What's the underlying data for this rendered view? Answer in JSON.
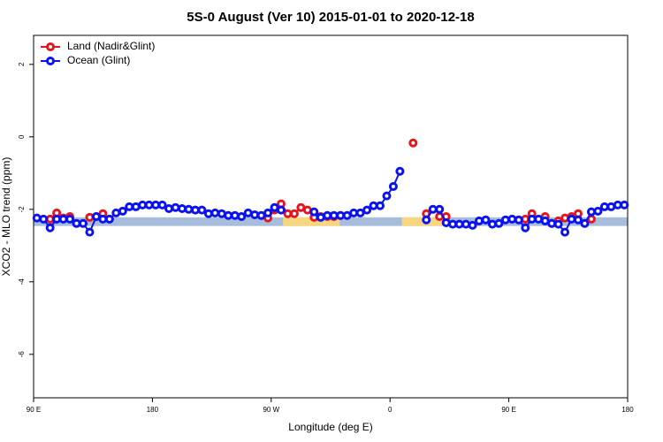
{
  "chart_data": {
    "type": "line",
    "title": "5S-0 August (Ver 10)   2015-01-01 to 2020-12-18",
    "xlabel": "Longitude (deg E)",
    "ylabel": "XCO2 - MLO trend (ppm)",
    "xlim": [
      90,
      540
    ],
    "xticks": [
      {
        "value": 90,
        "label": "90 E"
      },
      180,
      {
        "value": 270,
        "label": "90 W"
      },
      {
        "value": 360,
        "label": "0"
      },
      {
        "value": 450,
        "label": "90 E"
      },
      {
        "value": 540,
        "label": "180"
      }
    ],
    "ylim": [
      -7.2,
      2.8
    ],
    "yticks": [
      2,
      0,
      -2,
      -4,
      -6
    ],
    "legend": "top-left",
    "bands": [
      {
        "color": "#a7bddb",
        "x": [
          90,
          540
        ],
        "y": [
          -2.22,
          -2.46
        ]
      },
      {
        "color": "#f6d77f",
        "x": [
          279,
          322
        ],
        "y": [
          -2.22,
          -2.46
        ]
      },
      {
        "color": "#f6d77f",
        "x": [
          369,
          403
        ],
        "y": [
          -2.22,
          -2.46
        ]
      }
    ],
    "x": [
      92.5,
      97.5,
      102.5,
      107.5,
      112.5,
      117.5,
      122.5,
      127.5,
      132.5,
      137.5,
      142.5,
      147.5,
      152.5,
      157.5,
      162.5,
      167.5,
      172.5,
      177.5,
      182.5,
      187.5,
      192.5,
      197.5,
      202.5,
      207.5,
      212.5,
      217.5,
      222.5,
      227.5,
      232.5,
      237.5,
      242.5,
      247.5,
      252.5,
      257.5,
      262.5,
      267.5,
      272.5,
      277.5,
      282.5,
      287.5,
      292.5,
      297.5,
      302.5,
      307.5,
      312.5,
      317.5,
      322.5,
      327.5,
      332.5,
      337.5,
      342.5,
      347.5,
      352.5,
      357.5,
      362.5,
      367.5,
      372.5,
      377.5,
      382.5,
      387.5,
      392.5,
      397.5,
      402.5,
      407.5,
      412.5,
      417.5,
      422.5,
      427.5,
      432.5,
      437.5,
      442.5,
      447.5,
      452.5,
      457.5,
      462.5,
      467.5,
      472.5,
      477.5,
      482.5,
      487.5,
      492.5,
      497.5,
      502.5,
      507.5,
      512.5,
      517.5,
      522.5,
      527.5,
      532.5,
      537.5
    ],
    "series": [
      {
        "name": "Land (Nadir&Glint)",
        "color": "#e8141c",
        "values": [
          null,
          null,
          -2.27,
          -2.1,
          -2.24,
          -2.2,
          null,
          null,
          -2.22,
          -2.2,
          -2.12,
          -2.27,
          null,
          null,
          null,
          null,
          null,
          null,
          null,
          null,
          null,
          null,
          null,
          null,
          null,
          null,
          null,
          null,
          null,
          null,
          null,
          null,
          null,
          null,
          null,
          -2.24,
          -2.02,
          -1.85,
          -2.12,
          -2.12,
          -1.95,
          -2.02,
          -2.22,
          -2.2,
          -2.2,
          -2.2,
          -2.17,
          null,
          null,
          null,
          null,
          null,
          null,
          null,
          null,
          null,
          null,
          -0.17,
          null,
          -2.12,
          null,
          -2.2,
          -2.2,
          null,
          null,
          null,
          null,
          null,
          null,
          null,
          null,
          null,
          null,
          null,
          -2.27,
          -2.12,
          null,
          -2.2,
          null,
          -2.32,
          -2.24,
          -2.2,
          -2.12,
          null,
          -2.27,
          null,
          null,
          null,
          null,
          null
        ]
      },
      {
        "name": "Ocean (Glint)",
        "color": "#0a12f0",
        "values": [
          -2.24,
          -2.27,
          -2.51,
          -2.27,
          -2.27,
          -2.27,
          -2.39,
          -2.39,
          -2.63,
          -2.2,
          -2.27,
          -2.27,
          -2.1,
          -2.05,
          -1.93,
          -1.93,
          -1.88,
          -1.88,
          -1.88,
          -1.88,
          -1.98,
          -1.95,
          -1.98,
          -2.0,
          -2.02,
          -2.02,
          -2.12,
          -2.1,
          -2.12,
          -2.17,
          -2.17,
          -2.2,
          -2.1,
          -2.15,
          -2.17,
          -2.1,
          -1.95,
          -2.02,
          null,
          null,
          null,
          null,
          -2.07,
          -2.22,
          -2.17,
          -2.17,
          -2.17,
          -2.17,
          -2.1,
          -2.1,
          -2.02,
          -1.9,
          -1.9,
          -1.63,
          -1.37,
          -0.95,
          null,
          null,
          null,
          -2.29,
          -2.0,
          -2.0,
          -2.37,
          -2.41,
          -2.41,
          -2.41,
          -2.44,
          -2.32,
          -2.29,
          -2.41,
          -2.39,
          -2.29,
          -2.27,
          -2.29,
          -2.51,
          -2.27,
          -2.27,
          -2.32,
          -2.39,
          -2.41,
          -2.63,
          -2.27,
          -2.29,
          -2.39,
          -2.07,
          -2.05,
          -1.93,
          -1.93,
          -1.88,
          -1.88
        ]
      }
    ]
  }
}
